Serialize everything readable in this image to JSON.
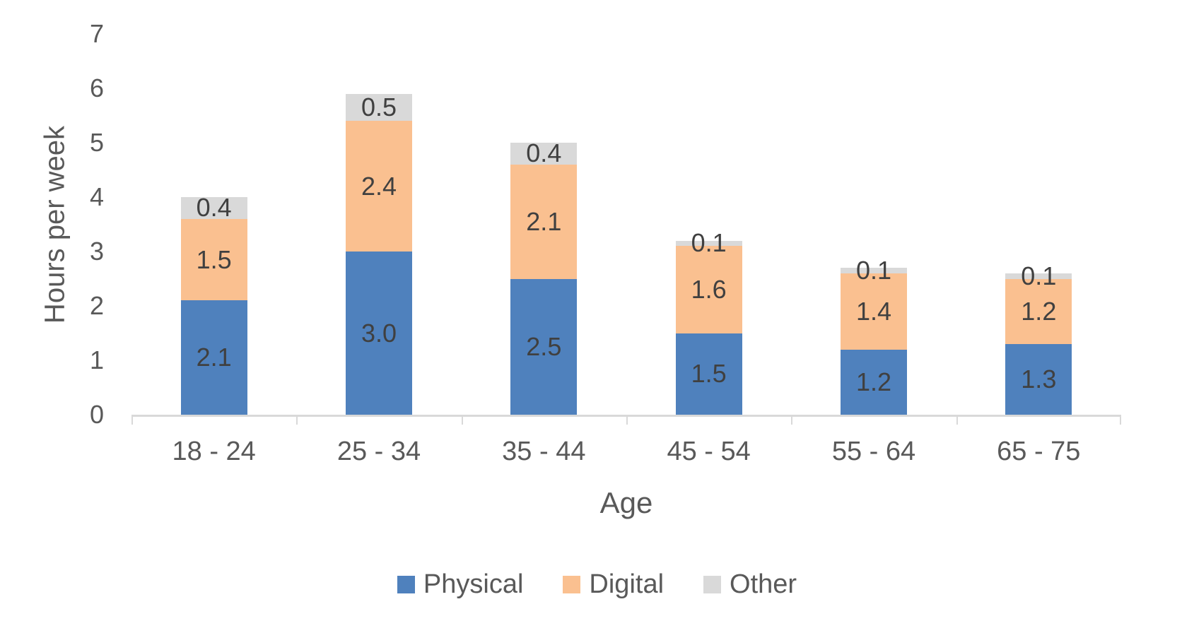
{
  "chart_data": {
    "type": "bar",
    "stacked": true,
    "categories": [
      "18 - 24",
      "25 - 34",
      "35 - 44",
      "45 - 54",
      "55 - 64",
      "65 - 75"
    ],
    "series": [
      {
        "name": "Physical",
        "color": "#4f81bd",
        "values": [
          2.1,
          3.0,
          2.5,
          1.5,
          1.2,
          1.3
        ]
      },
      {
        "name": "Digital",
        "color": "#fac090",
        "values": [
          1.5,
          2.4,
          2.1,
          1.6,
          1.4,
          1.2
        ]
      },
      {
        "name": "Other",
        "color": "#d9d9d9",
        "values": [
          0.4,
          0.5,
          0.4,
          0.1,
          0.1,
          0.1
        ]
      }
    ],
    "xlabel": "Age",
    "ylabel": "Hours per week",
    "ylim": [
      0,
      7
    ],
    "yticks": [
      0,
      1,
      2,
      3,
      4,
      5,
      6,
      7
    ],
    "grid": false,
    "legend_position": "bottom",
    "data_labels": true,
    "label_decimals": 1
  },
  "styles": {
    "axis_line_color": "#d9d9d9",
    "tick_text_color": "#595959",
    "data_label_color": "#404040",
    "background": "#ffffff"
  }
}
